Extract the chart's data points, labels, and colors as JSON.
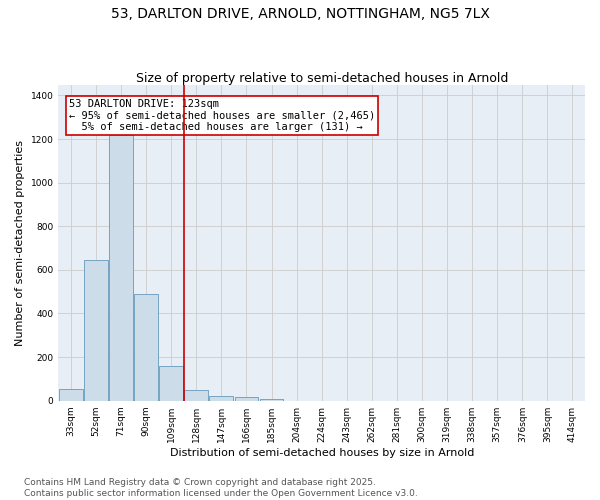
{
  "title_line1": "53, DARLTON DRIVE, ARNOLD, NOTTINGHAM, NG5 7LX",
  "title_line2": "Size of property relative to semi-detached houses in Arnold",
  "xlabel": "Distribution of semi-detached houses by size in Arnold",
  "ylabel": "Number of semi-detached properties",
  "bar_color": "#ccdce8",
  "bar_edge_color": "#6699bb",
  "grid_color": "#cccccc",
  "bg_color": "#e8eef6",
  "annotation_box_color": "#cc0000",
  "vline_color": "#cc0000",
  "categories": [
    "33sqm",
    "52sqm",
    "71sqm",
    "90sqm",
    "109sqm",
    "128sqm",
    "147sqm",
    "166sqm",
    "185sqm",
    "204sqm",
    "224sqm",
    "243sqm",
    "262sqm",
    "281sqm",
    "300sqm",
    "319sqm",
    "338sqm",
    "357sqm",
    "376sqm",
    "395sqm",
    "414sqm"
  ],
  "values": [
    55,
    645,
    1220,
    490,
    160,
    50,
    20,
    15,
    10,
    0,
    0,
    0,
    0,
    0,
    0,
    0,
    0,
    0,
    0,
    0,
    0
  ],
  "ylim": [
    0,
    1450
  ],
  "yticks": [
    0,
    200,
    400,
    600,
    800,
    1000,
    1200,
    1400
  ],
  "property_label": "53 DARLTON DRIVE: 123sqm",
  "pct_smaller_label": "← 95% of semi-detached houses are smaller (2,465)",
  "pct_larger_label": "5% of semi-detached houses are larger (131) →",
  "vline_x_index": 4.5,
  "footer_line1": "Contains HM Land Registry data © Crown copyright and database right 2025.",
  "footer_line2": "Contains public sector information licensed under the Open Government Licence v3.0.",
  "title_fontsize": 10,
  "subtitle_fontsize": 9,
  "axis_label_fontsize": 8,
  "tick_fontsize": 6.5,
  "annotation_fontsize": 7.5,
  "footer_fontsize": 6.5
}
